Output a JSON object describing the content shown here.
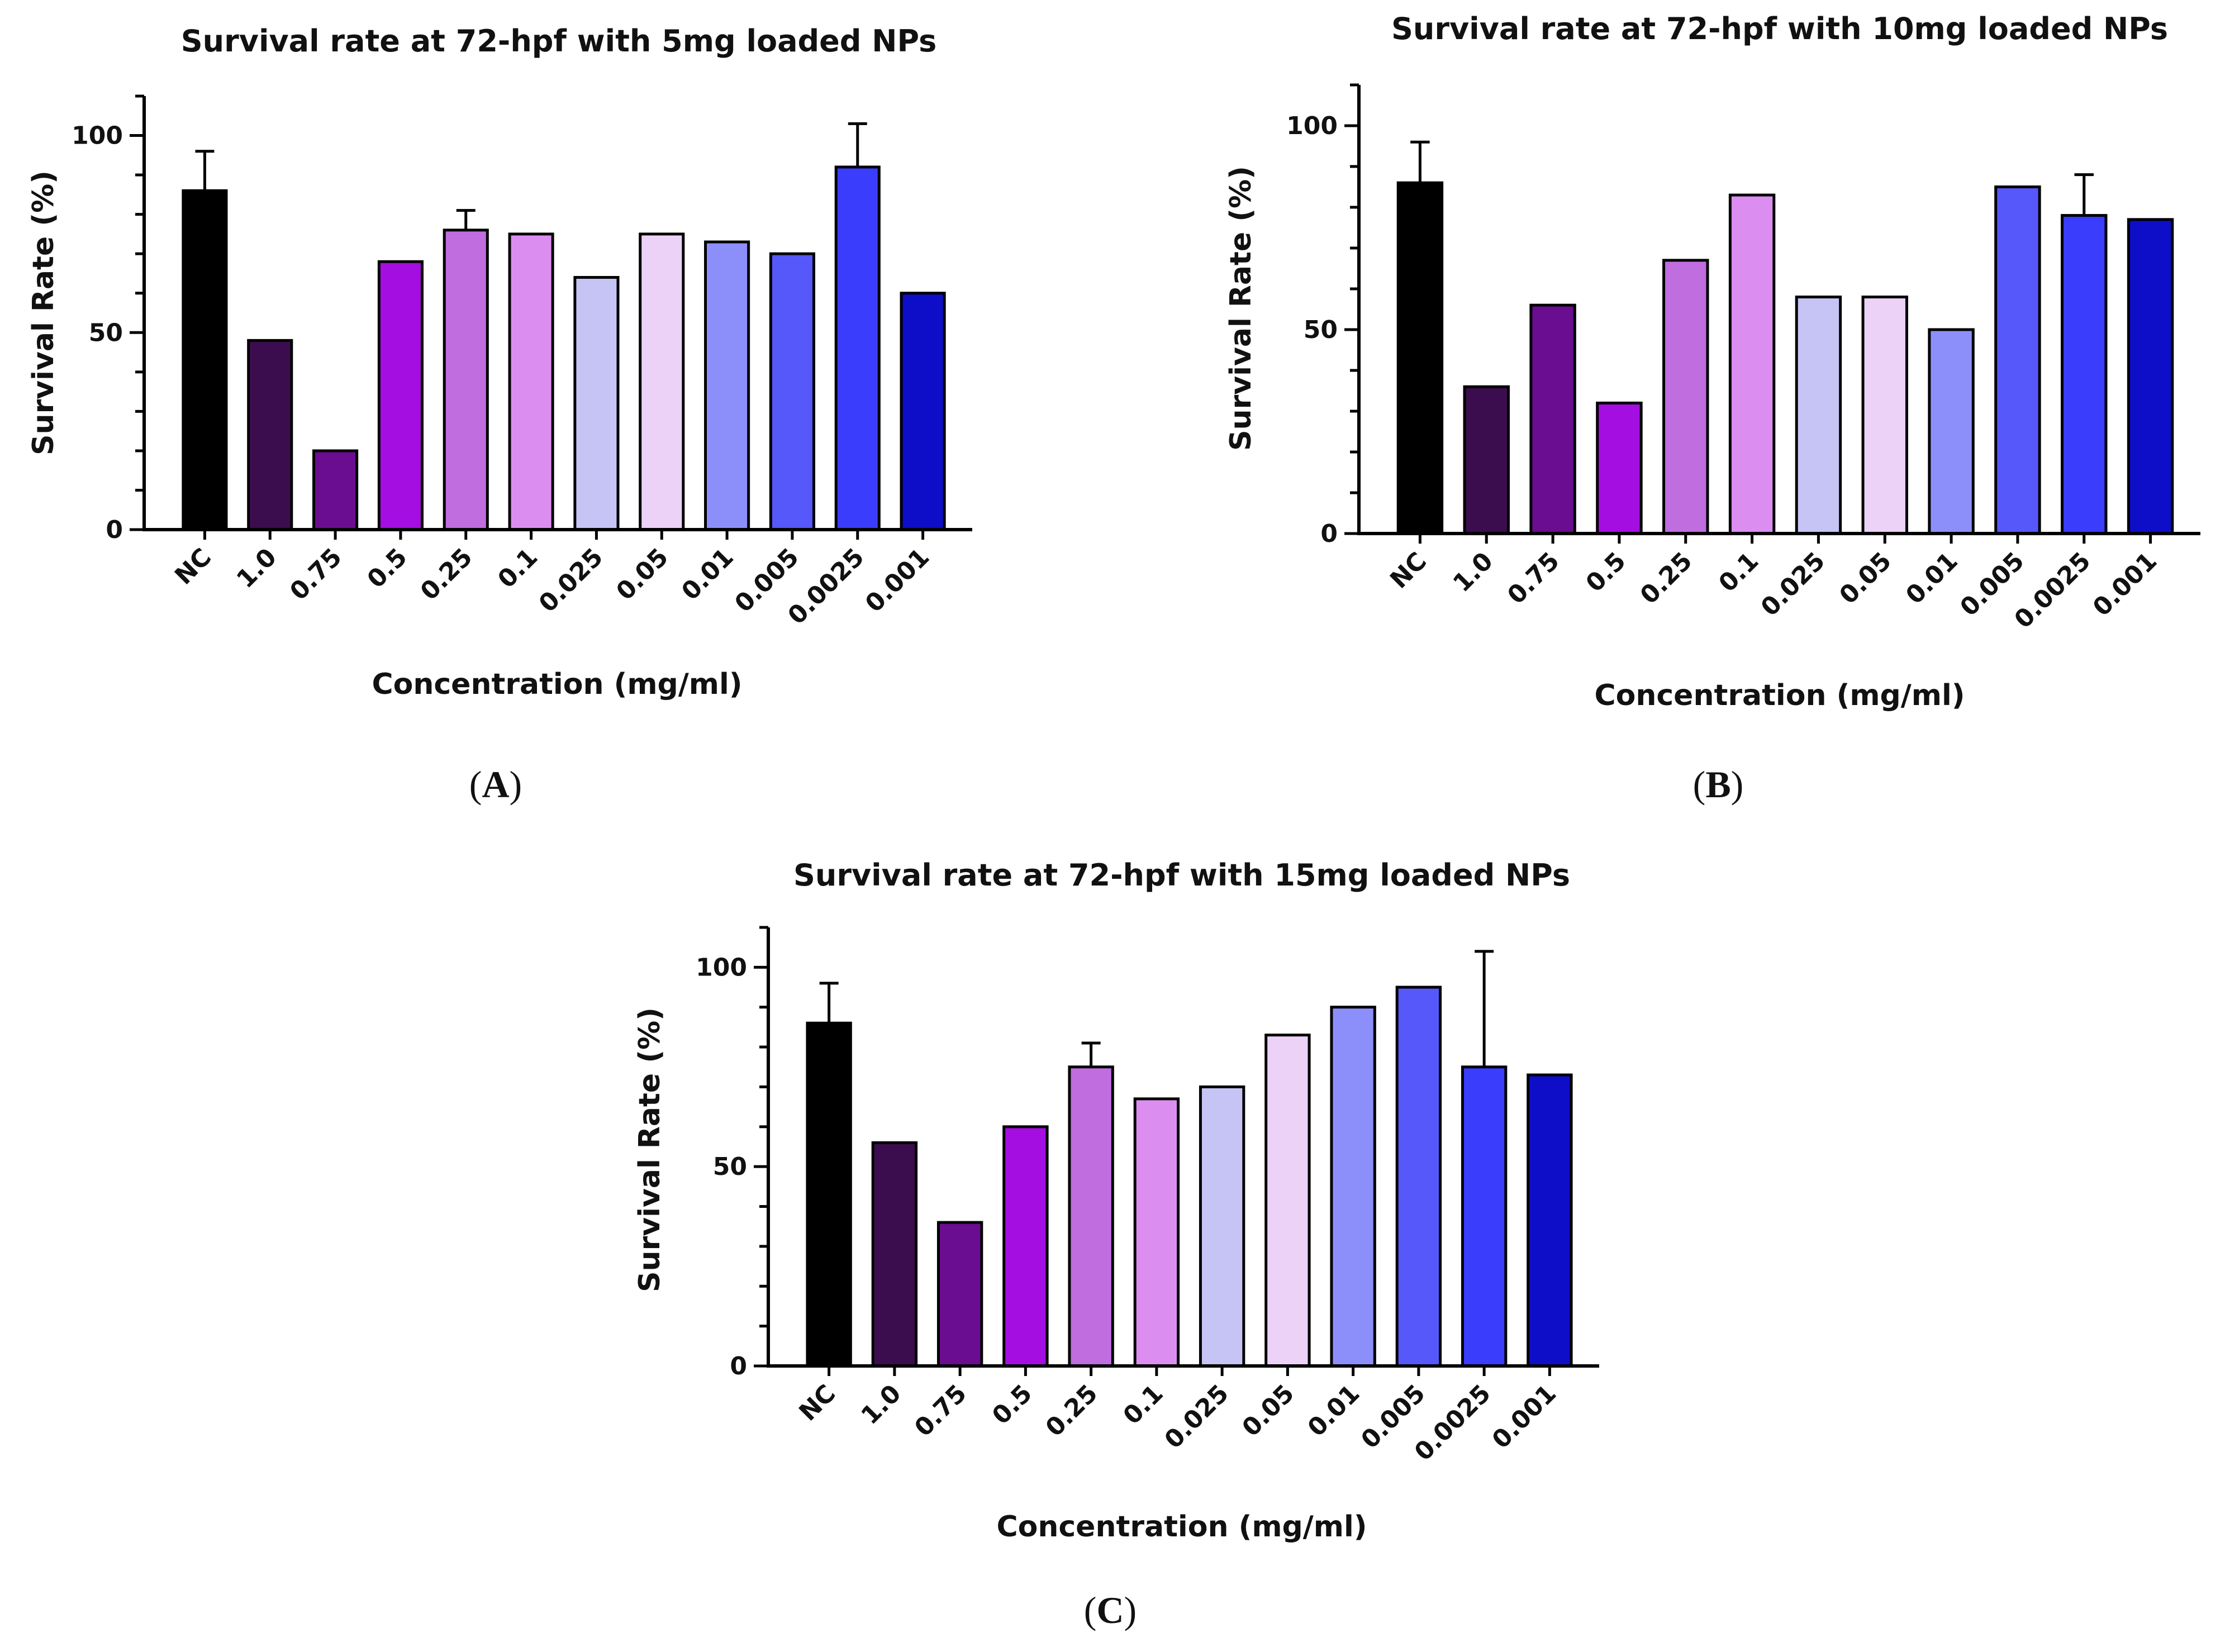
{
  "chart_data": [
    {
      "panel": "A",
      "type": "bar",
      "title": "Survival rate at 72-hpf with 5mg loaded NPs",
      "xlabel": "Concentration (mg/ml)",
      "ylabel": "Survival Rate (%)",
      "ylim": [
        0,
        110
      ],
      "yticks": [
        0,
        50,
        100
      ],
      "categories": [
        "NC",
        "1.0",
        "0.75",
        "0.5",
        "0.25",
        "0.1",
        "0.025",
        "0.05",
        "0.01",
        "0.005",
        "0.0025",
        "0.001"
      ],
      "values": [
        86,
        48,
        20,
        68,
        76,
        75,
        64,
        75,
        73,
        70,
        92,
        60
      ],
      "error": [
        10,
        0,
        0,
        0,
        5,
        0,
        0,
        0,
        0,
        0,
        11,
        0
      ],
      "colors": [
        "#000000",
        "#3c0d4e",
        "#6a0d91",
        "#a40ee0",
        "#c06de0",
        "#dc8ef0",
        "#c6c4f5",
        "#ecd2f6",
        "#8c8ffa",
        "#5658fa",
        "#3a3dfc",
        "#0e0ec8"
      ]
    },
    {
      "panel": "B",
      "type": "bar",
      "title": "Survival rate at 72-hpf with 10mg loaded NPs",
      "xlabel": "Concentration (mg/ml)",
      "ylabel": "Survival Rate (%)",
      "ylim": [
        0,
        110
      ],
      "yticks": [
        0,
        50,
        100
      ],
      "categories": [
        "NC",
        "1.0",
        "0.75",
        "0.5",
        "0.25",
        "0.1",
        "0.025",
        "0.05",
        "0.01",
        "0.005",
        "0.0025",
        "0.001"
      ],
      "values": [
        86,
        36,
        56,
        32,
        67,
        83,
        58,
        58,
        50,
        85,
        78,
        77
      ],
      "error": [
        10,
        0,
        0,
        0,
        0,
        0,
        0,
        0,
        0,
        0,
        10,
        0
      ],
      "colors": [
        "#000000",
        "#3c0d4e",
        "#6a0d91",
        "#a40ee0",
        "#c06de0",
        "#dc8ef0",
        "#c6c4f5",
        "#ecd2f6",
        "#8c8ffa",
        "#5658fa",
        "#3a3dfc",
        "#0e0ec8"
      ]
    },
    {
      "panel": "C",
      "type": "bar",
      "title": "Survival rate at 72-hpf with 15mg loaded NPs",
      "xlabel": "Concentration (mg/ml)",
      "ylabel": "Survival Rate (%)",
      "ylim": [
        0,
        110
      ],
      "yticks": [
        0,
        50,
        100
      ],
      "categories": [
        "NC",
        "1.0",
        "0.75",
        "0.5",
        "0.25",
        "0.1",
        "0.025",
        "0.05",
        "0.01",
        "0.005",
        "0.0025",
        "0.001"
      ],
      "values": [
        86,
        56,
        36,
        60,
        75,
        67,
        70,
        83,
        90,
        95,
        75,
        73
      ],
      "error": [
        10,
        0,
        0,
        0,
        6,
        0,
        0,
        0,
        0,
        0,
        29,
        0
      ],
      "colors": [
        "#000000",
        "#3c0d4e",
        "#6a0d91",
        "#a40ee0",
        "#c06de0",
        "#dc8ef0",
        "#c6c4f5",
        "#ecd2f6",
        "#8c8ffa",
        "#5658fa",
        "#3a3dfc",
        "#0e0ec8"
      ]
    }
  ],
  "panel_labels": {
    "a": {
      "open": "(",
      "letter": "A",
      "close": ")"
    },
    "b": {
      "open": "(",
      "letter": "B",
      "close": ")"
    },
    "c": {
      "open": "(",
      "letter": "C",
      "close": ")"
    }
  }
}
